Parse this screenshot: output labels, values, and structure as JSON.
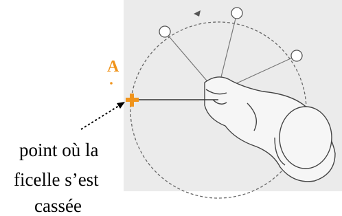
{
  "label_a": "A",
  "caption": [
    "point où la",
    "ficelle s’est",
    "cassée"
  ]
}
